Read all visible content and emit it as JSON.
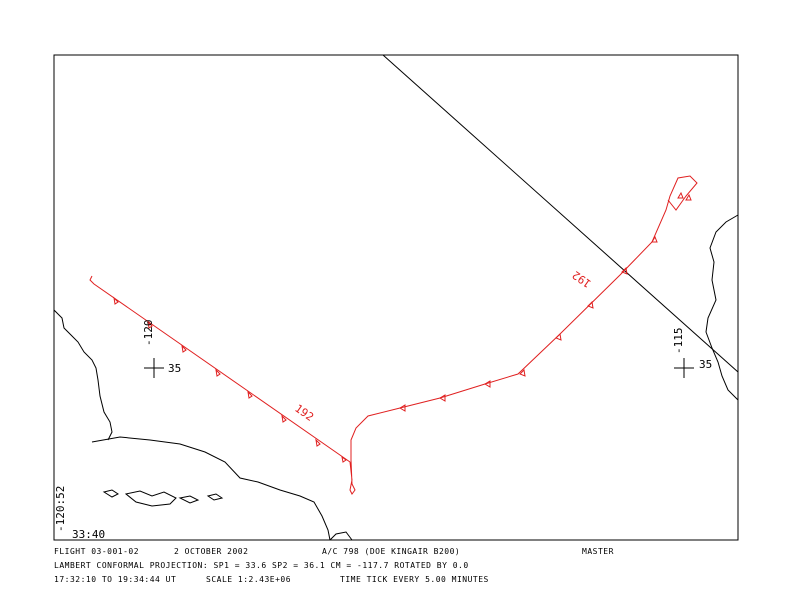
{
  "map": {
    "grid_labels": {
      "lon_left": "-120",
      "lat_left": "35",
      "lon_right": "-115",
      "lat_right": "35"
    },
    "track_labels": [
      "192",
      "192"
    ],
    "corner": {
      "lon": "-120:52",
      "lat": "33:40"
    }
  },
  "footer": {
    "flight": "FLIGHT 03-001-02",
    "date": "2 OCTOBER 2002",
    "aircraft": "A/C 798  (DOE KINGAIR B200)",
    "tag": "MASTER",
    "projection": "LAMBERT CONFORMAL PROJECTION:  SP1 =   33.6 SP2 =   36.1 CM = -117.7 ROTATED BY    0.0",
    "time_range": "17:32:10 TO 19:34:44 UT",
    "scale": "SCALE 1:2.43E+06",
    "tick": "TIME TICK EVERY   5.00 MINUTES"
  }
}
